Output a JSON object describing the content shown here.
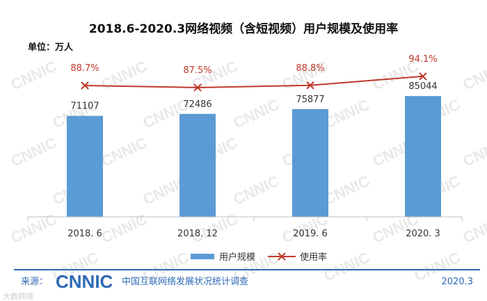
{
  "chart_data": {
    "type": "bar",
    "title": "2018.6-2020.3网络视频（含短视频）用户规模及使用率",
    "unit_label": "单位：万人",
    "categories": [
      "2018. 6",
      "2018. 12",
      "2019. 6",
      "2020. 3"
    ],
    "series": [
      {
        "name": "用户规模",
        "type": "bar",
        "values": [
          71107,
          72486,
          75877,
          85044
        ],
        "color": "#5b9bd5"
      },
      {
        "name": "使用率",
        "type": "line",
        "values": [
          88.7,
          87.5,
          88.8,
          94.1
        ],
        "labels": [
          "88.7%",
          "87.5%",
          "88.8%",
          "94.1%"
        ],
        "color": "#c0392b"
      }
    ],
    "legend": {
      "placement": "bottom"
    },
    "grid": false
  },
  "footer": {
    "source_label": "来源：",
    "logo_text": "CNNIC",
    "org_name": "中国互联网络发展状况统计调查",
    "date": "2020.3"
  },
  "watermark": "CNNIC",
  "corner_mark": "大数跨境"
}
